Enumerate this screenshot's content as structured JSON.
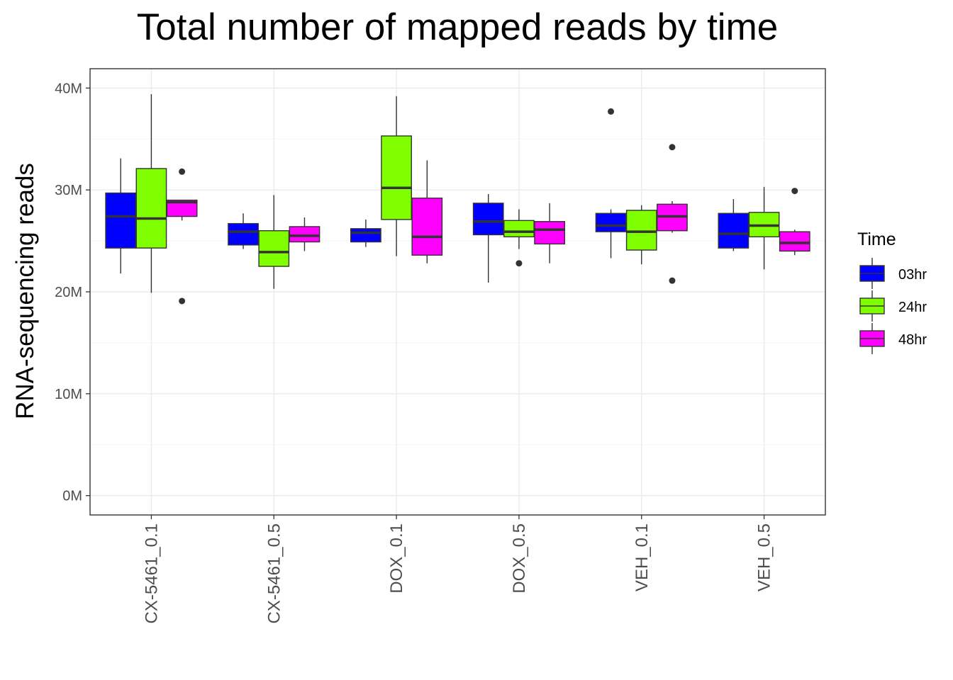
{
  "chart_data": {
    "type": "boxplot",
    "title": "Total number of mapped reads by time",
    "xlabel": "",
    "ylabel": "RNA-sequencing reads",
    "ylim": [
      -1.9,
      41.9
    ],
    "y_ticks": [
      0,
      10,
      20,
      30,
      40
    ],
    "y_tick_labels": [
      "0M",
      "10M",
      "20M",
      "30M",
      "40M"
    ],
    "grid": true,
    "legend": {
      "title": "Time",
      "position": "right"
    },
    "categories": [
      "CX-5461_0.1",
      "CX-5461_0.5",
      "DOX_0.1",
      "DOX_0.5",
      "VEH_0.1",
      "VEH_0.5"
    ],
    "series": [
      {
        "name": "03hr",
        "color": "#0000FF",
        "boxes": [
          {
            "min": 21.8,
            "q1": 24.3,
            "median": 27.4,
            "q3": 29.7,
            "max": 33.1,
            "outliers": []
          },
          {
            "min": 24.2,
            "q1": 24.6,
            "median": 25.9,
            "q3": 26.7,
            "max": 27.7,
            "outliers": []
          },
          {
            "min": 24.4,
            "q1": 24.9,
            "median": 25.8,
            "q3": 26.2,
            "max": 27.1,
            "outliers": []
          },
          {
            "min": 20.9,
            "q1": 25.6,
            "median": 26.9,
            "q3": 28.7,
            "max": 29.6,
            "outliers": []
          },
          {
            "min": 23.3,
            "q1": 25.9,
            "median": 26.5,
            "q3": 27.7,
            "max": 28.1,
            "outliers": [
              37.7
            ]
          },
          {
            "min": 24.0,
            "q1": 24.3,
            "median": 25.7,
            "q3": 27.7,
            "max": 29.1,
            "outliers": []
          }
        ]
      },
      {
        "name": "24hr",
        "color": "#7FFF00",
        "boxes": [
          {
            "min": 19.9,
            "q1": 24.3,
            "median": 27.2,
            "q3": 32.1,
            "max": 39.4,
            "outliers": []
          },
          {
            "min": 20.3,
            "q1": 22.5,
            "median": 23.9,
            "q3": 26.0,
            "max": 29.5,
            "outliers": []
          },
          {
            "min": 23.5,
            "q1": 27.1,
            "median": 30.2,
            "q3": 35.3,
            "max": 39.2,
            "outliers": []
          },
          {
            "min": 24.2,
            "q1": 25.4,
            "median": 25.9,
            "q3": 27.0,
            "max": 28.1,
            "outliers": [
              22.8
            ]
          },
          {
            "min": 22.7,
            "q1": 24.1,
            "median": 25.9,
            "q3": 28.0,
            "max": 28.5,
            "outliers": []
          },
          {
            "min": 22.2,
            "q1": 25.4,
            "median": 26.5,
            "q3": 27.8,
            "max": 30.3,
            "outliers": []
          }
        ]
      },
      {
        "name": "48hr",
        "color": "#FF00FF",
        "boxes": [
          {
            "min": 27.0,
            "q1": 27.4,
            "median": 28.8,
            "q3": 29.0,
            "max": 29.0,
            "outliers": [
              31.8,
              19.1
            ]
          },
          {
            "min": 24.0,
            "q1": 24.9,
            "median": 25.5,
            "q3": 26.4,
            "max": 27.3,
            "outliers": []
          },
          {
            "min": 22.8,
            "q1": 23.6,
            "median": 25.4,
            "q3": 29.2,
            "max": 32.9,
            "outliers": []
          },
          {
            "min": 22.8,
            "q1": 24.7,
            "median": 26.1,
            "q3": 26.9,
            "max": 28.7,
            "outliers": []
          },
          {
            "min": 25.8,
            "q1": 26.0,
            "median": 27.4,
            "q3": 28.6,
            "max": 28.9,
            "outliers": [
              34.2,
              21.1
            ]
          },
          {
            "min": 23.6,
            "q1": 24.0,
            "median": 24.8,
            "q3": 25.9,
            "max": 26.1,
            "outliers": [
              29.9
            ]
          }
        ]
      }
    ]
  }
}
